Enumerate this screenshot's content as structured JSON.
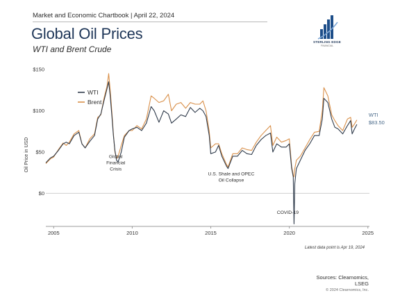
{
  "header": {
    "label": "Market and Economic Chartbook | April 22, 2024",
    "title": "Global Oil Prices",
    "subtitle": "WTI and Brent Crude"
  },
  "logo": {
    "name": "STERLING EDGE",
    "tagline": "FINANCIAL",
    "color": "#1d4e89"
  },
  "footer": {
    "footnote": "Latest data point is Apr 19, 2024",
    "sources_line1": "Sources: Clearnomics,",
    "sources_line2": "LSEG",
    "copyright": "© 2024 Clearnomics, Inc."
  },
  "colors": {
    "wti": "#2e3a4a",
    "brent": "#d9904a",
    "axis": "#9a9a9a",
    "grid": "#cfcfcf"
  },
  "chart_data": {
    "type": "line",
    "ylabel": "Oil Price in USD",
    "ylim": [
      -40,
      150
    ],
    "xlim": [
      2004.5,
      2025.1
    ],
    "y_ticks": [
      0,
      50,
      100,
      150
    ],
    "y_tick_labels": [
      "$0",
      "$50",
      "$100",
      "$150"
    ],
    "x_ticks": [
      2005,
      2010,
      2015,
      2020,
      2025
    ],
    "x_tick_labels": [
      "2005",
      "2010",
      "2015",
      "2020",
      "2025"
    ],
    "grid": "zero line only",
    "legend": "top-left",
    "series": [
      {
        "name": "WTI",
        "x": [
          2004.5,
          2004.8,
          2005.0,
          2005.3,
          2005.6,
          2005.8,
          2006.0,
          2006.3,
          2006.6,
          2006.8,
          2007.0,
          2007.3,
          2007.6,
          2007.8,
          2008.0,
          2008.2,
          2008.4,
          2008.5,
          2008.6,
          2008.7,
          2008.8,
          2008.9,
          2009.0,
          2009.1,
          2009.3,
          2009.5,
          2009.8,
          2010.0,
          2010.3,
          2010.6,
          2010.9,
          2011.2,
          2011.4,
          2011.7,
          2012.0,
          2012.3,
          2012.5,
          2012.8,
          2013.1,
          2013.4,
          2013.7,
          2014.0,
          2014.3,
          2014.5,
          2014.7,
          2014.9,
          2015.0,
          2015.3,
          2015.5,
          2015.7,
          2016.0,
          2016.1,
          2016.4,
          2016.7,
          2017.0,
          2017.3,
          2017.6,
          2017.9,
          2018.2,
          2018.5,
          2018.8,
          2018.95,
          2019.2,
          2019.5,
          2019.8,
          2020.0,
          2020.15,
          2020.25,
          2020.3,
          2020.35,
          2020.45,
          2020.7,
          2021.0,
          2021.3,
          2021.6,
          2021.9,
          2022.1,
          2022.2,
          2022.45,
          2022.7,
          2022.9,
          2023.1,
          2023.4,
          2023.7,
          2023.9,
          2024.0,
          2024.15,
          2024.3
        ],
        "values": [
          37,
          43,
          45,
          52,
          60,
          62,
          60,
          70,
          74,
          60,
          55,
          63,
          70,
          90,
          96,
          112,
          127,
          135,
          118,
          95,
          70,
          52,
          40,
          38,
          50,
          68,
          76,
          78,
          80,
          76,
          85,
          105,
          100,
          86,
          100,
          96,
          85,
          90,
          95,
          93,
          104,
          98,
          103,
          100,
          93,
          70,
          48,
          50,
          58,
          45,
          33,
          30,
          45,
          45,
          52,
          48,
          47,
          58,
          65,
          70,
          73,
          50,
          60,
          56,
          56,
          60,
          30,
          20,
          -37,
          12,
          30,
          40,
          52,
          60,
          70,
          70,
          90,
          115,
          110,
          90,
          80,
          78,
          72,
          82,
          88,
          72,
          78,
          83.5
        ]
      },
      {
        "name": "Brent",
        "x": [
          2004.5,
          2004.8,
          2005.0,
          2005.3,
          2005.6,
          2005.8,
          2006.0,
          2006.3,
          2006.6,
          2006.8,
          2007.0,
          2007.3,
          2007.6,
          2007.8,
          2008.0,
          2008.2,
          2008.4,
          2008.5,
          2008.6,
          2008.7,
          2008.8,
          2008.9,
          2009.0,
          2009.1,
          2009.3,
          2009.5,
          2009.8,
          2010.0,
          2010.3,
          2010.6,
          2010.9,
          2011.2,
          2011.4,
          2011.7,
          2012.0,
          2012.3,
          2012.5,
          2012.8,
          2013.1,
          2013.4,
          2013.7,
          2014.0,
          2014.3,
          2014.5,
          2014.7,
          2014.9,
          2015.0,
          2015.3,
          2015.5,
          2015.7,
          2016.0,
          2016.1,
          2016.4,
          2016.7,
          2017.0,
          2017.3,
          2017.6,
          2017.9,
          2018.2,
          2018.5,
          2018.8,
          2018.95,
          2019.2,
          2019.5,
          2019.8,
          2020.0,
          2020.15,
          2020.25,
          2020.3,
          2020.35,
          2020.45,
          2020.7,
          2021.0,
          2021.3,
          2021.6,
          2021.9,
          2022.1,
          2022.2,
          2022.45,
          2022.7,
          2022.9,
          2023.1,
          2023.4,
          2023.7,
          2023.9,
          2024.0,
          2024.15,
          2024.3
        ],
        "values": [
          36,
          42,
          44,
          53,
          61,
          58,
          62,
          72,
          76,
          60,
          55,
          66,
          72,
          92,
          95,
          115,
          130,
          145,
          125,
          100,
          72,
          50,
          42,
          45,
          58,
          70,
          76,
          76,
          82,
          78,
          90,
          118,
          115,
          110,
          112,
          120,
          100,
          108,
          110,
          103,
          110,
          108,
          108,
          112,
          100,
          75,
          55,
          60,
          60,
          48,
          35,
          32,
          48,
          48,
          55,
          53,
          52,
          62,
          70,
          76,
          82,
          58,
          68,
          62,
          64,
          66,
          33,
          22,
          20,
          30,
          40,
          45,
          55,
          65,
          74,
          75,
          100,
          128,
          118,
          95,
          88,
          82,
          76,
          90,
          92,
          80,
          84,
          89
        ]
      }
    ],
    "annotations": [
      {
        "text": "Global\nFinancial\nCrisis",
        "x": 2008.95,
        "y": 43
      },
      {
        "text": "U.S. Shale and OPEC\nOil Collapse",
        "x": 2016.3,
        "y": 22
      },
      {
        "text": "COVID-19",
        "x": 2019.9,
        "y": -25
      }
    ],
    "end_labels": {
      "series": "WTI",
      "value_label": "$83.50"
    }
  }
}
